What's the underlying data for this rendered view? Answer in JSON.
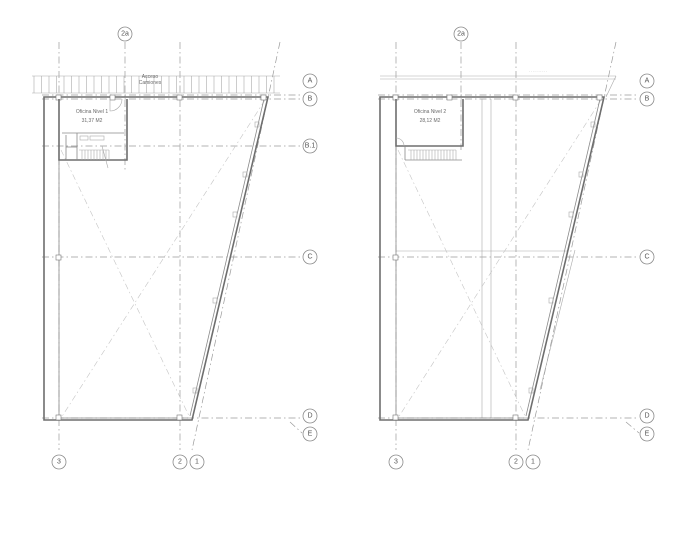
{
  "grid_bubbles": {
    "col_2a": "2a",
    "col_3": "3",
    "col_2": "2",
    "col_1": "1",
    "row_a": "A",
    "row_b": "B",
    "row_b1": "B.1",
    "row_c": "C",
    "row_d": "D",
    "row_e": "E"
  },
  "plan_level_1": {
    "access_label_line1": "Acceso",
    "access_label_line2": "Camiones",
    "office_name": "Oficina Nivel 1",
    "office_area": "31,37 M2"
  },
  "plan_level_2": {
    "office_name": "Oficina Nivel 2",
    "office_area": "28,12 M2"
  },
  "colors": {
    "line": "#6e6e6e",
    "grid": "#9a9a9a",
    "background": "#ffffff"
  }
}
